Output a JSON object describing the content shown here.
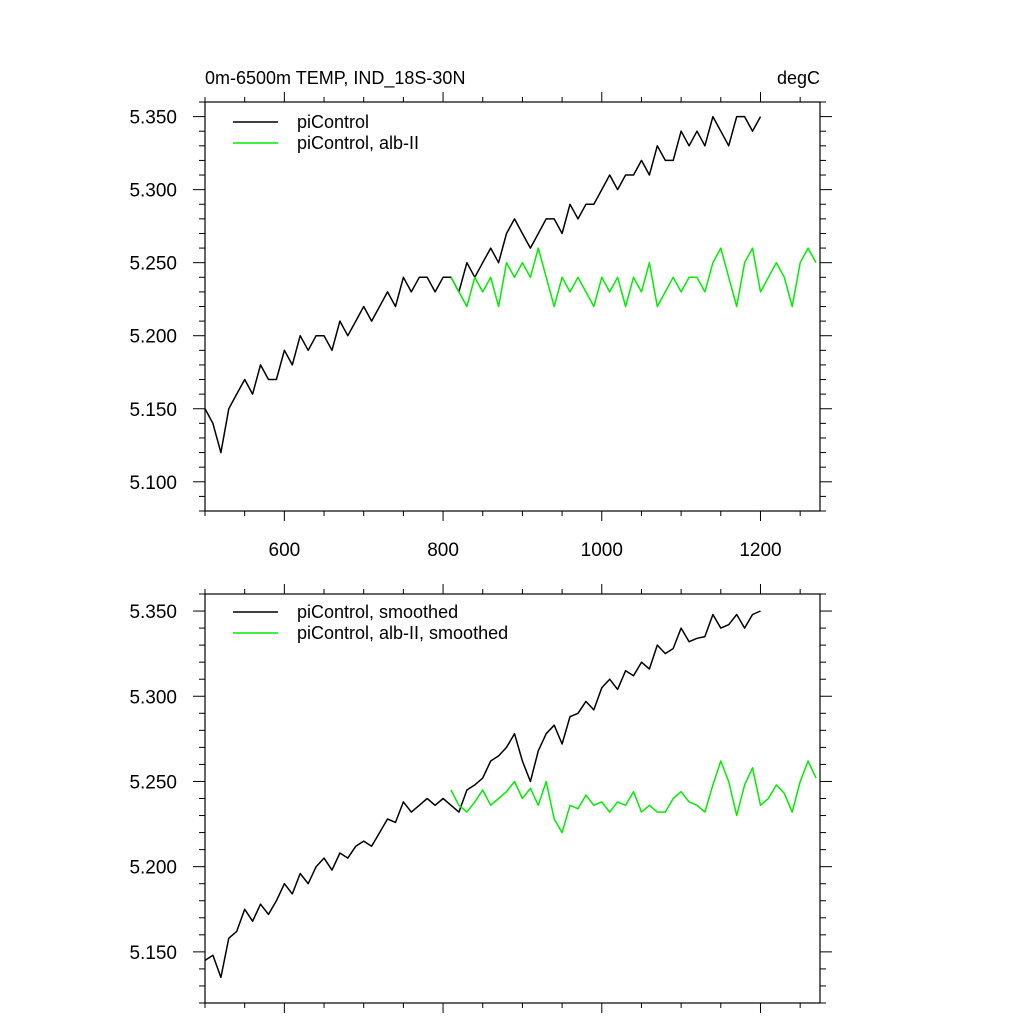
{
  "chart_data": [
    {
      "type": "line",
      "title": "0m-6500m TEMP, IND_18S-30N",
      "units": "degC",
      "xlim": [
        500,
        1275
      ],
      "ylim": [
        5.08,
        5.36
      ],
      "x_ticks": [
        600,
        800,
        1000,
        1200
      ],
      "x_tick_labels": [
        "600",
        "800",
        "1000",
        "1200"
      ],
      "y_ticks": [
        5.1,
        5.15,
        5.2,
        5.25,
        5.3,
        5.35
      ],
      "y_tick_labels": [
        "5.100",
        "5.150",
        "5.200",
        "5.250",
        "5.300",
        "5.350"
      ],
      "legend_position": "top-left",
      "grid": false,
      "series": [
        {
          "name": "piControl",
          "color": "#000000",
          "x": [
            500,
            510,
            520,
            530,
            540,
            550,
            560,
            570,
            580,
            590,
            600,
            610,
            620,
            630,
            640,
            650,
            660,
            670,
            680,
            690,
            700,
            710,
            720,
            730,
            740,
            750,
            760,
            770,
            780,
            790,
            800,
            810,
            820,
            830,
            840,
            850,
            860,
            870,
            880,
            890,
            900,
            910,
            920,
            930,
            940,
            950,
            960,
            970,
            980,
            990,
            1000,
            1010,
            1020,
            1030,
            1040,
            1050,
            1060,
            1070,
            1080,
            1090,
            1100,
            1110,
            1120,
            1130,
            1140,
            1150,
            1160,
            1170,
            1180,
            1190,
            1200
          ],
          "y": [
            5.15,
            5.14,
            5.12,
            5.15,
            5.16,
            5.17,
            5.16,
            5.18,
            5.17,
            5.17,
            5.19,
            5.18,
            5.2,
            5.19,
            5.2,
            5.2,
            5.19,
            5.21,
            5.2,
            5.21,
            5.22,
            5.21,
            5.22,
            5.23,
            5.22,
            5.24,
            5.23,
            5.24,
            5.24,
            5.23,
            5.24,
            5.24,
            5.23,
            5.25,
            5.24,
            5.25,
            5.26,
            5.25,
            5.27,
            5.28,
            5.27,
            5.26,
            5.27,
            5.28,
            5.28,
            5.27,
            5.29,
            5.28,
            5.29,
            5.29,
            5.3,
            5.31,
            5.3,
            5.31,
            5.31,
            5.32,
            5.31,
            5.33,
            5.32,
            5.32,
            5.34,
            5.33,
            5.34,
            5.33,
            5.35,
            5.34,
            5.33,
            5.35,
            5.35,
            5.34,
            5.35
          ]
        },
        {
          "name": "piControl, alb-II",
          "color": "#00ee00",
          "x": [
            810,
            820,
            830,
            840,
            850,
            860,
            870,
            880,
            890,
            900,
            910,
            920,
            930,
            940,
            950,
            960,
            970,
            980,
            990,
            1000,
            1010,
            1020,
            1030,
            1040,
            1050,
            1060,
            1070,
            1080,
            1090,
            1100,
            1110,
            1120,
            1130,
            1140,
            1150,
            1160,
            1170,
            1180,
            1190,
            1200,
            1210,
            1220,
            1230,
            1240,
            1250,
            1260,
            1270
          ],
          "y": [
            5.24,
            5.23,
            5.22,
            5.24,
            5.23,
            5.24,
            5.22,
            5.25,
            5.24,
            5.25,
            5.24,
            5.26,
            5.24,
            5.22,
            5.24,
            5.23,
            5.24,
            5.23,
            5.22,
            5.24,
            5.23,
            5.24,
            5.22,
            5.24,
            5.23,
            5.25,
            5.22,
            5.23,
            5.24,
            5.23,
            5.24,
            5.24,
            5.23,
            5.25,
            5.26,
            5.24,
            5.22,
            5.25,
            5.26,
            5.23,
            5.24,
            5.25,
            5.24,
            5.22,
            5.25,
            5.26,
            5.25
          ]
        }
      ]
    },
    {
      "type": "line",
      "xlim": [
        500,
        1275
      ],
      "ylim": [
        5.12,
        5.36
      ],
      "x_ticks": [
        600,
        800,
        1000,
        1200
      ],
      "y_ticks": [
        5.15,
        5.2,
        5.25,
        5.3,
        5.35
      ],
      "y_tick_labels": [
        "5.150",
        "5.200",
        "5.250",
        "5.300",
        "5.350"
      ],
      "legend_position": "top-left",
      "grid": false,
      "series": [
        {
          "name": "piControl, smoothed",
          "color": "#000000",
          "x": [
            500,
            510,
            520,
            530,
            540,
            550,
            560,
            570,
            580,
            590,
            600,
            610,
            620,
            630,
            640,
            650,
            660,
            670,
            680,
            690,
            700,
            710,
            720,
            730,
            740,
            750,
            760,
            770,
            780,
            790,
            800,
            810,
            820,
            830,
            840,
            850,
            860,
            870,
            880,
            890,
            900,
            910,
            920,
            930,
            940,
            950,
            960,
            970,
            980,
            990,
            1000,
            1010,
            1020,
            1030,
            1040,
            1050,
            1060,
            1070,
            1080,
            1090,
            1100,
            1110,
            1120,
            1130,
            1140,
            1150,
            1160,
            1170,
            1180,
            1190,
            1200
          ],
          "y": [
            5.145,
            5.148,
            5.135,
            5.158,
            5.162,
            5.175,
            5.168,
            5.178,
            5.172,
            5.18,
            5.19,
            5.184,
            5.196,
            5.19,
            5.2,
            5.205,
            5.198,
            5.208,
            5.205,
            5.212,
            5.215,
            5.212,
            5.22,
            5.228,
            5.226,
            5.238,
            5.232,
            5.236,
            5.24,
            5.236,
            5.24,
            5.236,
            5.232,
            5.245,
            5.248,
            5.252,
            5.262,
            5.265,
            5.27,
            5.278,
            5.262,
            5.25,
            5.268,
            5.278,
            5.283,
            5.272,
            5.288,
            5.29,
            5.297,
            5.292,
            5.305,
            5.31,
            5.304,
            5.315,
            5.312,
            5.32,
            5.316,
            5.33,
            5.325,
            5.328,
            5.34,
            5.332,
            5.334,
            5.335,
            5.348,
            5.34,
            5.342,
            5.348,
            5.34,
            5.348,
            5.35
          ]
        },
        {
          "name": "piControl, alb-II, smoothed",
          "color": "#00ee00",
          "x": [
            810,
            820,
            830,
            840,
            850,
            860,
            870,
            880,
            890,
            900,
            910,
            920,
            930,
            940,
            950,
            960,
            970,
            980,
            990,
            1000,
            1010,
            1020,
            1030,
            1040,
            1050,
            1060,
            1070,
            1080,
            1090,
            1100,
            1110,
            1120,
            1130,
            1140,
            1150,
            1160,
            1170,
            1180,
            1190,
            1200,
            1210,
            1220,
            1230,
            1240,
            1250,
            1260,
            1270
          ],
          "y": [
            5.245,
            5.236,
            5.232,
            5.238,
            5.245,
            5.236,
            5.24,
            5.244,
            5.25,
            5.24,
            5.246,
            5.236,
            5.25,
            5.228,
            5.22,
            5.236,
            5.234,
            5.242,
            5.236,
            5.238,
            5.232,
            5.238,
            5.236,
            5.244,
            5.232,
            5.236,
            5.232,
            5.232,
            5.24,
            5.244,
            5.238,
            5.236,
            5.232,
            5.248,
            5.262,
            5.25,
            5.23,
            5.248,
            5.258,
            5.236,
            5.24,
            5.248,
            5.243,
            5.232,
            5.25,
            5.262,
            5.252
          ]
        }
      ]
    }
  ]
}
